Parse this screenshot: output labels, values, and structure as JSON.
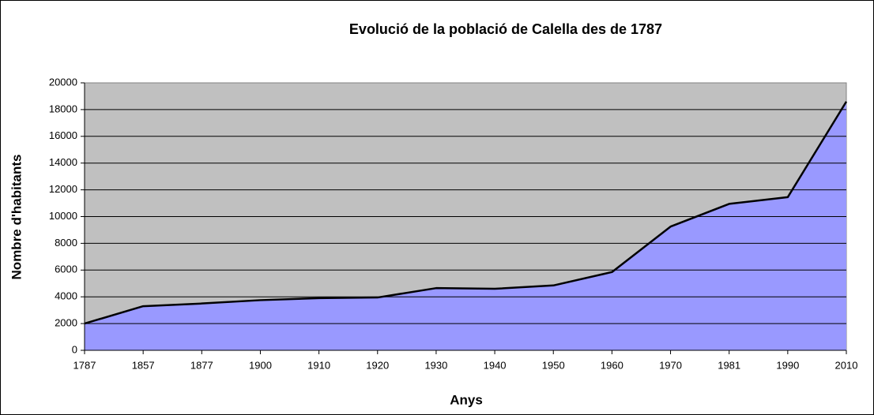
{
  "chart_data": {
    "type": "area",
    "title": "Evolució de la població de Calella des de 1787",
    "x_label": "Anys",
    "y_label": "Nombre d'habitants",
    "categories": [
      "1787",
      "1857",
      "1877",
      "1900",
      "1910",
      "1920",
      "1930",
      "1940",
      "1950",
      "1960",
      "1970",
      "1981",
      "1990",
      "2010"
    ],
    "values": [
      2000,
      3300,
      3500,
      3750,
      3900,
      3950,
      4650,
      4600,
      4850,
      5850,
      9250,
      10950,
      11450,
      18600
    ],
    "color": "#9999ff",
    "ylim": [
      0,
      20000
    ],
    "yticks": [
      0,
      2000,
      4000,
      6000,
      8000,
      10000,
      12000,
      14000,
      16000,
      18000,
      20000
    ],
    "grid": true
  }
}
